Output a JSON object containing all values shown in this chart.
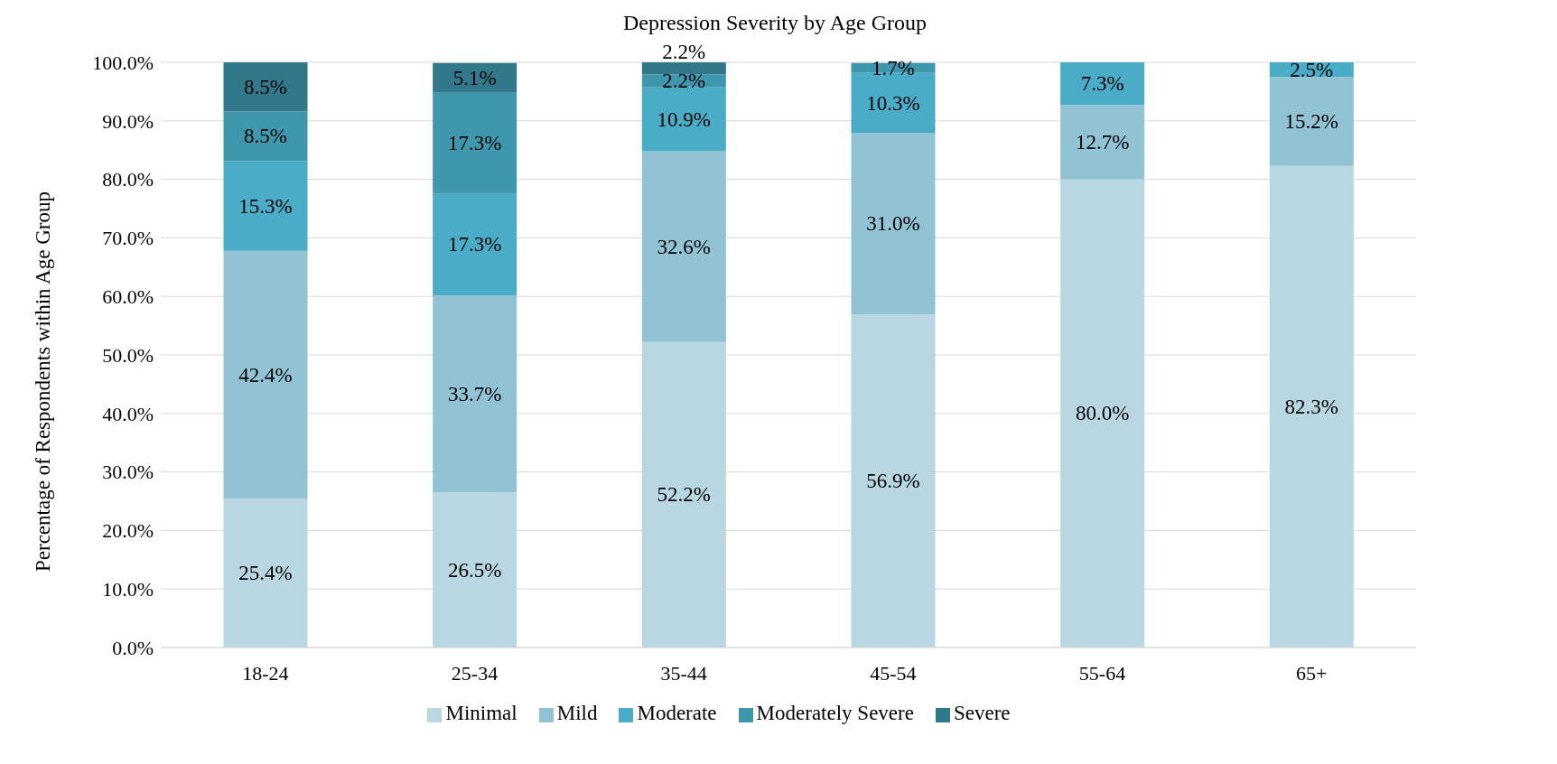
{
  "chart_data": {
    "type": "bar",
    "title": "Depression Severity by Age Group",
    "ylabel": "Percentage of Respondents within Age Group",
    "categories": [
      "18-24",
      "25-34",
      "35-44",
      "45-54",
      "55-64",
      "65+"
    ],
    "stacked": true,
    "series": [
      {
        "name": "Minimal",
        "color": "#b9d7e2",
        "values": [
          25.4,
          26.5,
          52.2,
          56.9,
          80.0,
          82.3
        ],
        "value_labels": [
          "25.4%",
          "26.5%",
          "52.2%",
          "56.9%",
          "80.0%",
          "82.3%"
        ]
      },
      {
        "name": "Mild",
        "color": "#92c3d4",
        "values": [
          42.4,
          33.7,
          32.6,
          31.0,
          12.7,
          15.2
        ],
        "value_labels": [
          "42.4%",
          "33.7%",
          "32.6%",
          "31.0%",
          "12.7%",
          "15.2%"
        ]
      },
      {
        "name": "Moderate",
        "color": "#4aacc6",
        "values": [
          15.3,
          17.3,
          10.9,
          10.3,
          7.3,
          2.5
        ],
        "value_labels": [
          "15.3%",
          "17.3%",
          "10.9%",
          "10.3%",
          "7.3%",
          "2.5%"
        ]
      },
      {
        "name": "Moderately Severe",
        "color": "#3f97ad",
        "values": [
          8.5,
          17.3,
          2.2,
          1.7,
          null,
          null
        ],
        "value_labels": [
          "8.5%",
          "17.3%",
          "2.2%",
          "1.7%",
          null,
          null
        ]
      },
      {
        "name": "Severe",
        "color": "#31788b",
        "values": [
          8.5,
          5.1,
          2.2,
          null,
          null,
          null
        ],
        "value_labels": [
          "8.5%",
          "5.1%",
          "2.2%",
          null,
          null,
          null
        ]
      }
    ],
    "ylim": [
      0,
      100
    ],
    "yticks": [
      {
        "value": 0,
        "label": "0.0%"
      },
      {
        "value": 10,
        "label": "10.0%"
      },
      {
        "value": 20,
        "label": "20.0%"
      },
      {
        "value": 30,
        "label": "30.0%"
      },
      {
        "value": 40,
        "label": "40.0%"
      },
      {
        "value": 50,
        "label": "50.0%"
      },
      {
        "value": 60,
        "label": "60.0%"
      },
      {
        "value": 70,
        "label": "70.0%"
      },
      {
        "value": 80,
        "label": "80.0%"
      },
      {
        "value": 90,
        "label": "90.0%"
      },
      {
        "value": 100,
        "label": "100.0%"
      }
    ],
    "grid": "y",
    "legend": "bottom"
  }
}
